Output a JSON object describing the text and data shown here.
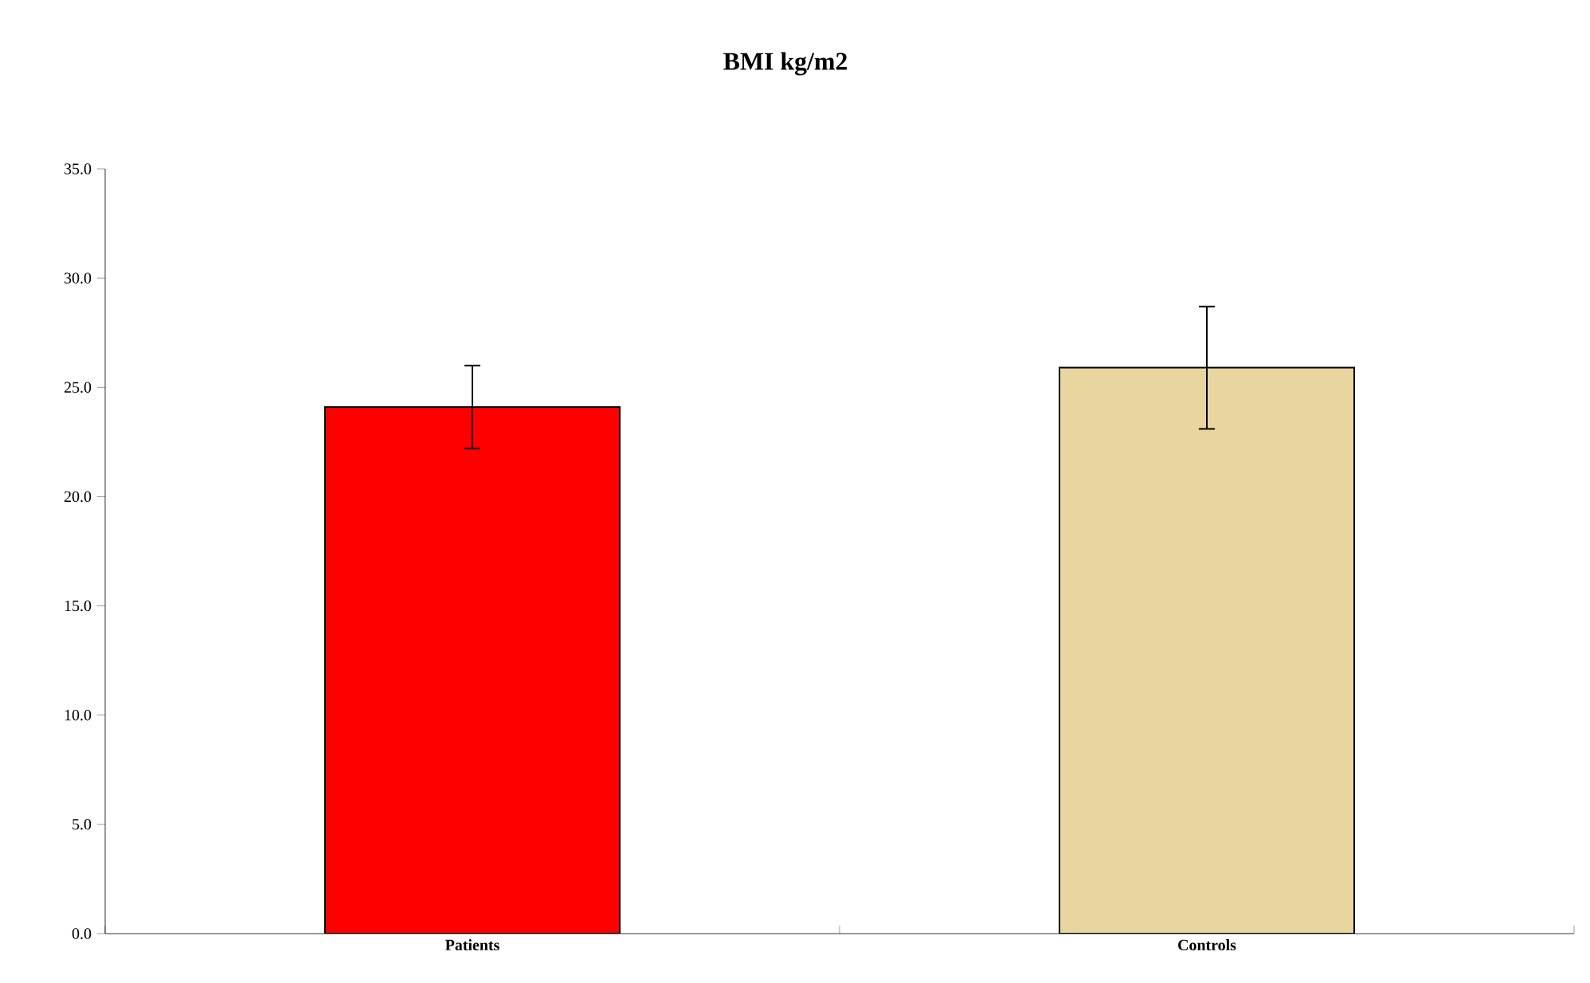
{
  "chart_data": {
    "type": "bar",
    "title": "BMI kg/m2",
    "categories": [
      "Patients",
      "Controls"
    ],
    "values": [
      24.1,
      25.9
    ],
    "errors": [
      1.9,
      2.8
    ],
    "colors": [
      "#ff0000",
      "#e8d5a0"
    ],
    "ylim": [
      0,
      35
    ],
    "yticks": [
      {
        "value": 0,
        "label": "0.0"
      },
      {
        "value": 5,
        "label": "5.0"
      },
      {
        "value": 10,
        "label": "10.0"
      },
      {
        "value": 15,
        "label": "15.0"
      },
      {
        "value": 20,
        "label": "20.0"
      },
      {
        "value": 25,
        "label": "25.0"
      },
      {
        "value": 30,
        "label": "30.0"
      },
      {
        "value": 35,
        "label": "35.0"
      }
    ],
    "grid": false
  }
}
